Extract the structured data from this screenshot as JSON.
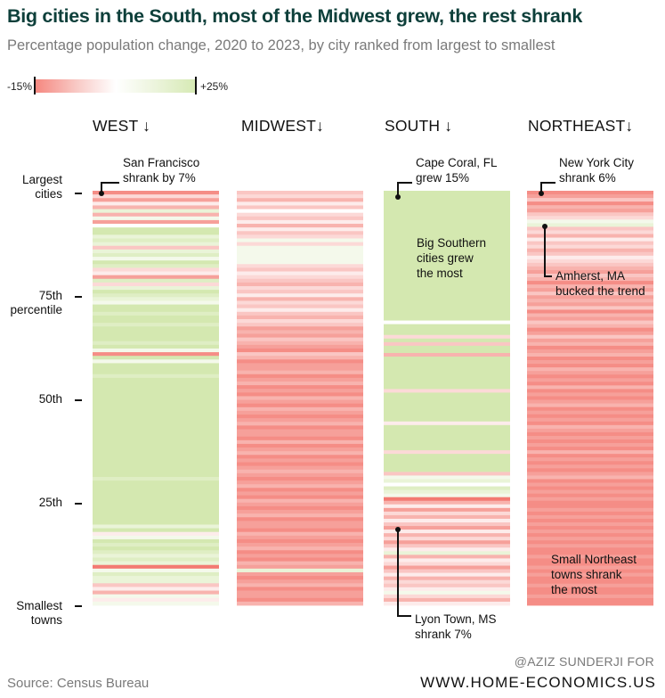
{
  "title": "Big cities in the South, most of the Midwest grew, the rest shrank",
  "subtitle": "Percentage population change, 2020 to 2023, by city ranked from largest to smallest",
  "legend": {
    "min_label": "-15%",
    "max_label": "+25%",
    "min": -15,
    "max": 25,
    "colors": {
      "negative": "#f37a72",
      "neutral": "#ffffff",
      "positive": "#d4e8b0"
    }
  },
  "y_axis": {
    "labels": [
      "Largest\ncities",
      "75th\npercentile",
      "50th",
      "25th",
      "Smallest\ntowns"
    ]
  },
  "annotations": {
    "west": "San Francisco\nshrank by 7%",
    "south_top": "Cape Coral, FL\ngrew 15%",
    "south_mid": "Big Southern\ncities grew\nthe most",
    "south_bottom": "Lyon Town, MS\nshrank 7%",
    "northeast_top": "New York City\nshrank 6%",
    "northeast_mid": "Amherst, MA\nbucked the trend",
    "northeast_bottom": "Small Northeast\ntowns shrank\nthe most"
  },
  "source": "Source: Census Bureau",
  "credit_line1": "@AZIZ SUNDERJI FOR",
  "credit_line2": "WWW.HOME-ECONOMICS.US",
  "chart_data": {
    "type": "heatmap",
    "title": "Big cities in the South, most of the Midwest grew, the rest shrank",
    "subtitle": "Percentage population change, 2020 to 2023, by city ranked from largest to smallest",
    "value_range": [
      -15,
      25
    ],
    "y_order": "largest to smallest",
    "series": [
      {
        "name": "WEST ↓",
        "values": [
          -6,
          -2,
          -5,
          -1,
          -4,
          2,
          -4,
          1,
          -5,
          0,
          4,
          4,
          2,
          3,
          2,
          -3,
          2,
          3,
          1,
          4,
          3,
          -2,
          -1,
          -5,
          3,
          -2,
          2,
          4,
          3,
          2,
          1,
          4,
          5,
          3,
          4,
          4,
          3,
          5,
          4,
          4,
          4,
          3,
          5,
          1,
          -6,
          4,
          1,
          5,
          4,
          5,
          3,
          5,
          4,
          5,
          4,
          5,
          6,
          4,
          5,
          6,
          5,
          5,
          6,
          5,
          5,
          5,
          4,
          6,
          5,
          6,
          5,
          5,
          6,
          5,
          5,
          6,
          5,
          4,
          3,
          5,
          5,
          5,
          4,
          5,
          4,
          6,
          5,
          4,
          5,
          5,
          6,
          2,
          4,
          -1,
          1,
          5,
          3,
          4,
          3,
          2,
          3,
          2,
          -7,
          1,
          3,
          2,
          2,
          -3,
          -1,
          -4,
          1,
          -1,
          1
        ]
      },
      {
        "name": "MIDWEST↓",
        "values": [
          -3,
          -2,
          -4,
          -1,
          -3,
          0,
          -2,
          -3,
          -1,
          -4,
          -1,
          -3,
          -2,
          1,
          -2,
          1,
          1,
          1,
          1,
          1,
          -2,
          -3,
          -1,
          -2,
          -3,
          -4,
          -2,
          -3,
          -1,
          -4,
          -2,
          -3,
          -1,
          -3,
          -4,
          -2,
          -3,
          -5,
          -4,
          -5,
          -3,
          -4,
          -5,
          -6,
          -3,
          -4,
          -6,
          -5,
          -5,
          -4,
          -6,
          -5,
          -4,
          -6,
          -5,
          -6,
          -4,
          -5,
          -6,
          -4,
          -5,
          -6,
          -5,
          -4,
          -6,
          -5,
          -5,
          -6,
          -4,
          -6,
          -5,
          -4,
          -6,
          -5,
          -6,
          -5,
          -4,
          -5,
          -6,
          -5,
          -4,
          -6,
          -5,
          -6,
          -4,
          -5,
          -6,
          -5,
          -4,
          -6,
          -5,
          -5,
          -6,
          -4,
          -5,
          -6,
          -5,
          -4,
          -6,
          -5,
          -6,
          -4,
          -5,
          2,
          -5,
          -6,
          -5,
          -4,
          -6,
          -5,
          -5,
          -6,
          -4
        ]
      },
      {
        "name": "SOUTH ↓",
        "values": [
          15,
          14,
          15,
          14,
          15,
          15,
          14,
          15,
          14,
          15,
          15,
          14,
          15,
          15,
          14,
          15,
          14,
          15,
          14,
          15,
          15,
          14,
          15,
          14,
          15,
          15,
          14,
          15,
          14,
          15,
          15,
          14,
          15,
          14,
          15,
          14,
          0,
          10,
          9,
          10,
          -2,
          10,
          -3,
          10,
          9,
          -4,
          9,
          10,
          8,
          10,
          9,
          10,
          8,
          9,
          10,
          -2,
          7,
          9,
          8,
          10,
          9,
          8,
          9,
          7,
          -1,
          8,
          9,
          10,
          8,
          9,
          7,
          8,
          -2,
          9,
          8,
          7,
          8,
          9,
          -3,
          1,
          2,
          0,
          3,
          2,
          1,
          -7,
          -4,
          -1,
          -5,
          -2,
          -4,
          -1,
          -3,
          -5,
          -1,
          -4,
          -2,
          -5,
          -3,
          -1,
          2,
          -4,
          -1,
          -2,
          -5,
          -3,
          -1,
          -4,
          -2,
          -3,
          -1,
          1,
          -2,
          -4,
          -1
        ]
      },
      {
        "name": "NORTHEAST↓",
        "values": [
          -6,
          -5,
          -3,
          -6,
          -4,
          -5,
          -3,
          -2,
          1,
          2,
          -3,
          -2,
          -4,
          -1,
          -3,
          -2,
          -4,
          -3,
          -1,
          -2,
          -3,
          -4,
          -5,
          -3,
          -4,
          -6,
          -4,
          -5,
          -3,
          -5,
          -4,
          -5,
          -3,
          -6,
          -4,
          -5,
          -3,
          -4,
          -6,
          -5,
          -3,
          -5,
          -4,
          -6,
          -5,
          -4,
          -6,
          -5,
          -6,
          -4,
          -5,
          -6,
          -5,
          -6,
          -4,
          -6,
          -5,
          -6,
          -5,
          -4,
          -6,
          -5,
          -6,
          -5,
          -6,
          -4,
          -5,
          -6,
          -5,
          -6,
          -5,
          -6,
          -4,
          -6,
          -5,
          -6,
          -5,
          -6,
          -5,
          -4,
          -6,
          -5,
          -6,
          -5,
          -6,
          -5,
          -6,
          -6,
          -5,
          -6,
          -5,
          -6,
          -5,
          -6,
          -5,
          -6,
          -5,
          -6,
          -5,
          -6,
          -6,
          -5,
          -6,
          -6,
          -5,
          -6,
          -5,
          -6,
          -6,
          -5,
          -6,
          -6,
          -5,
          -6,
          -6
        ]
      }
    ]
  }
}
